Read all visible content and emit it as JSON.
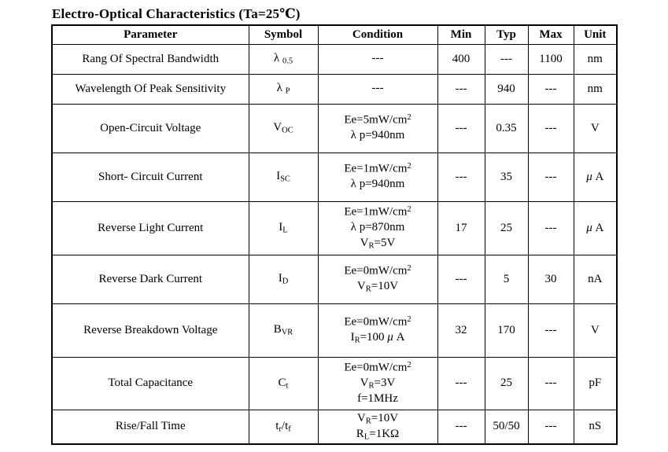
{
  "page": {
    "title": "Electro-Optical Characteristics (Ta=25℃)"
  },
  "table": {
    "headers": [
      "Parameter",
      "Symbol",
      "Condition",
      "Min",
      "Typ",
      "Max",
      "Unit"
    ],
    "rows": [
      {
        "parameter": "Rang Of Spectral Bandwidth",
        "align": "left",
        "symbol": [
          {
            "t": "λ "
          },
          {
            "t": "0.5",
            "s": "sub"
          }
        ],
        "condition": [
          [
            {
              "t": "---"
            }
          ]
        ],
        "min": "400",
        "typ": "---",
        "max": "1100",
        "unit": [
          {
            "t": "nm"
          }
        ]
      },
      {
        "parameter": "Wavelength Of Peak Sensitivity",
        "align": "left",
        "symbol": [
          {
            "t": "λ "
          },
          {
            "t": "P",
            "s": "sub"
          }
        ],
        "condition": [
          [
            {
              "t": "---"
            }
          ]
        ],
        "min": "---",
        "typ": "940",
        "max": "---",
        "unit": [
          {
            "t": "nm"
          }
        ]
      },
      {
        "parameter": "Open-Circuit Voltage",
        "align": "left",
        "symbol": [
          {
            "t": "V"
          },
          {
            "t": "OC",
            "s": "sub"
          }
        ],
        "condition": [
          [
            {
              "t": "Ee=5mW/cm"
            },
            {
              "t": "2",
              "s": "sup"
            }
          ],
          [
            {
              "t": "λ p=940nm"
            }
          ]
        ],
        "min": "---",
        "typ": "0.35",
        "max": "---",
        "unit": [
          {
            "t": "V"
          }
        ]
      },
      {
        "parameter": "Short- Circuit Current",
        "align": "left",
        "symbol": [
          {
            "t": "I"
          },
          {
            "t": "SC",
            "s": "sub"
          }
        ],
        "condition": [
          [
            {
              "t": "Ee=1mW/cm"
            },
            {
              "t": "2",
              "s": "sup"
            }
          ],
          [
            {
              "t": "λ p=940nm"
            }
          ]
        ],
        "min": "---",
        "typ": "35",
        "max": "---",
        "unit": [
          {
            "t": "μ ",
            "i": true
          },
          {
            "t": "A"
          }
        ]
      },
      {
        "parameter": "Reverse Light Current",
        "align": "left",
        "symbol": [
          {
            "t": "I"
          },
          {
            "t": "L",
            "s": "sub"
          }
        ],
        "condition": [
          [
            {
              "t": "Ee=1mW/cm"
            },
            {
              "t": "2",
              "s": "sup"
            }
          ],
          [
            {
              "t": "λ p=870nm"
            }
          ],
          [
            {
              "t": "V"
            },
            {
              "t": "R",
              "s": "sub"
            },
            {
              "t": "=5V"
            }
          ]
        ],
        "min": "17",
        "typ": "25",
        "max": "---",
        "unit": [
          {
            "t": "μ ",
            "i": true
          },
          {
            "t": "A"
          }
        ]
      },
      {
        "parameter": "Reverse Dark Current",
        "align": "left",
        "symbol": [
          {
            "t": "I"
          },
          {
            "t": "D",
            "s": "sub"
          }
        ],
        "condition": [
          [
            {
              "t": "Ee=0mW/cm"
            },
            {
              "t": "2",
              "s": "sup"
            }
          ],
          [
            {
              "t": "V"
            },
            {
              "t": "R",
              "s": "sub"
            },
            {
              "t": "=10V"
            }
          ]
        ],
        "min": "---",
        "typ": "5",
        "max": "30",
        "unit": [
          {
            "t": "nA"
          }
        ]
      },
      {
        "parameter": "Reverse Breakdown Voltage",
        "align": "left",
        "symbol": [
          {
            "t": "B"
          },
          {
            "t": "VR",
            "s": "sub"
          }
        ],
        "condition": [
          [
            {
              "t": "Ee=0mW/cm"
            },
            {
              "t": "2",
              "s": "sup"
            }
          ],
          [
            {
              "t": "I"
            },
            {
              "t": "R",
              "s": "sub"
            },
            {
              "t": "=100 "
            },
            {
              "t": "μ ",
              "i": true
            },
            {
              "t": "A"
            }
          ]
        ],
        "min": "32",
        "typ": "170",
        "max": "---",
        "unit": [
          {
            "t": "V"
          }
        ]
      },
      {
        "parameter": "Total Capacitance",
        "align": "left",
        "symbol": [
          {
            "t": "C"
          },
          {
            "t": "t",
            "s": "sub"
          }
        ],
        "condition": [
          [
            {
              "t": "Ee=0mW/cm"
            },
            {
              "t": "2",
              "s": "sup"
            }
          ],
          [
            {
              "t": "V"
            },
            {
              "t": "R",
              "s": "sub"
            },
            {
              "t": "=3V"
            }
          ],
          [
            {
              "t": "f=1MHz"
            }
          ]
        ],
        "min": "---",
        "typ": "25",
        "max": "---",
        "unit": [
          {
            "t": "pF"
          }
        ]
      },
      {
        "parameter": "Rise/Fall Time",
        "align": "center",
        "symbol": [
          {
            "t": "t"
          },
          {
            "t": "r",
            "s": "sub"
          },
          {
            "t": "/t"
          },
          {
            "t": "f",
            "s": "sub"
          }
        ],
        "condition": [
          [
            {
              "t": "V"
            },
            {
              "t": "R",
              "s": "sub"
            },
            {
              "t": "=10V"
            }
          ],
          [
            {
              "t": "R"
            },
            {
              "t": "L",
              "s": "sub"
            },
            {
              "t": "=1K"
            },
            {
              "t": "Ω"
            }
          ]
        ],
        "min": "---",
        "typ": "50/50",
        "max": "---",
        "unit": [
          {
            "t": "nS"
          }
        ]
      }
    ]
  }
}
